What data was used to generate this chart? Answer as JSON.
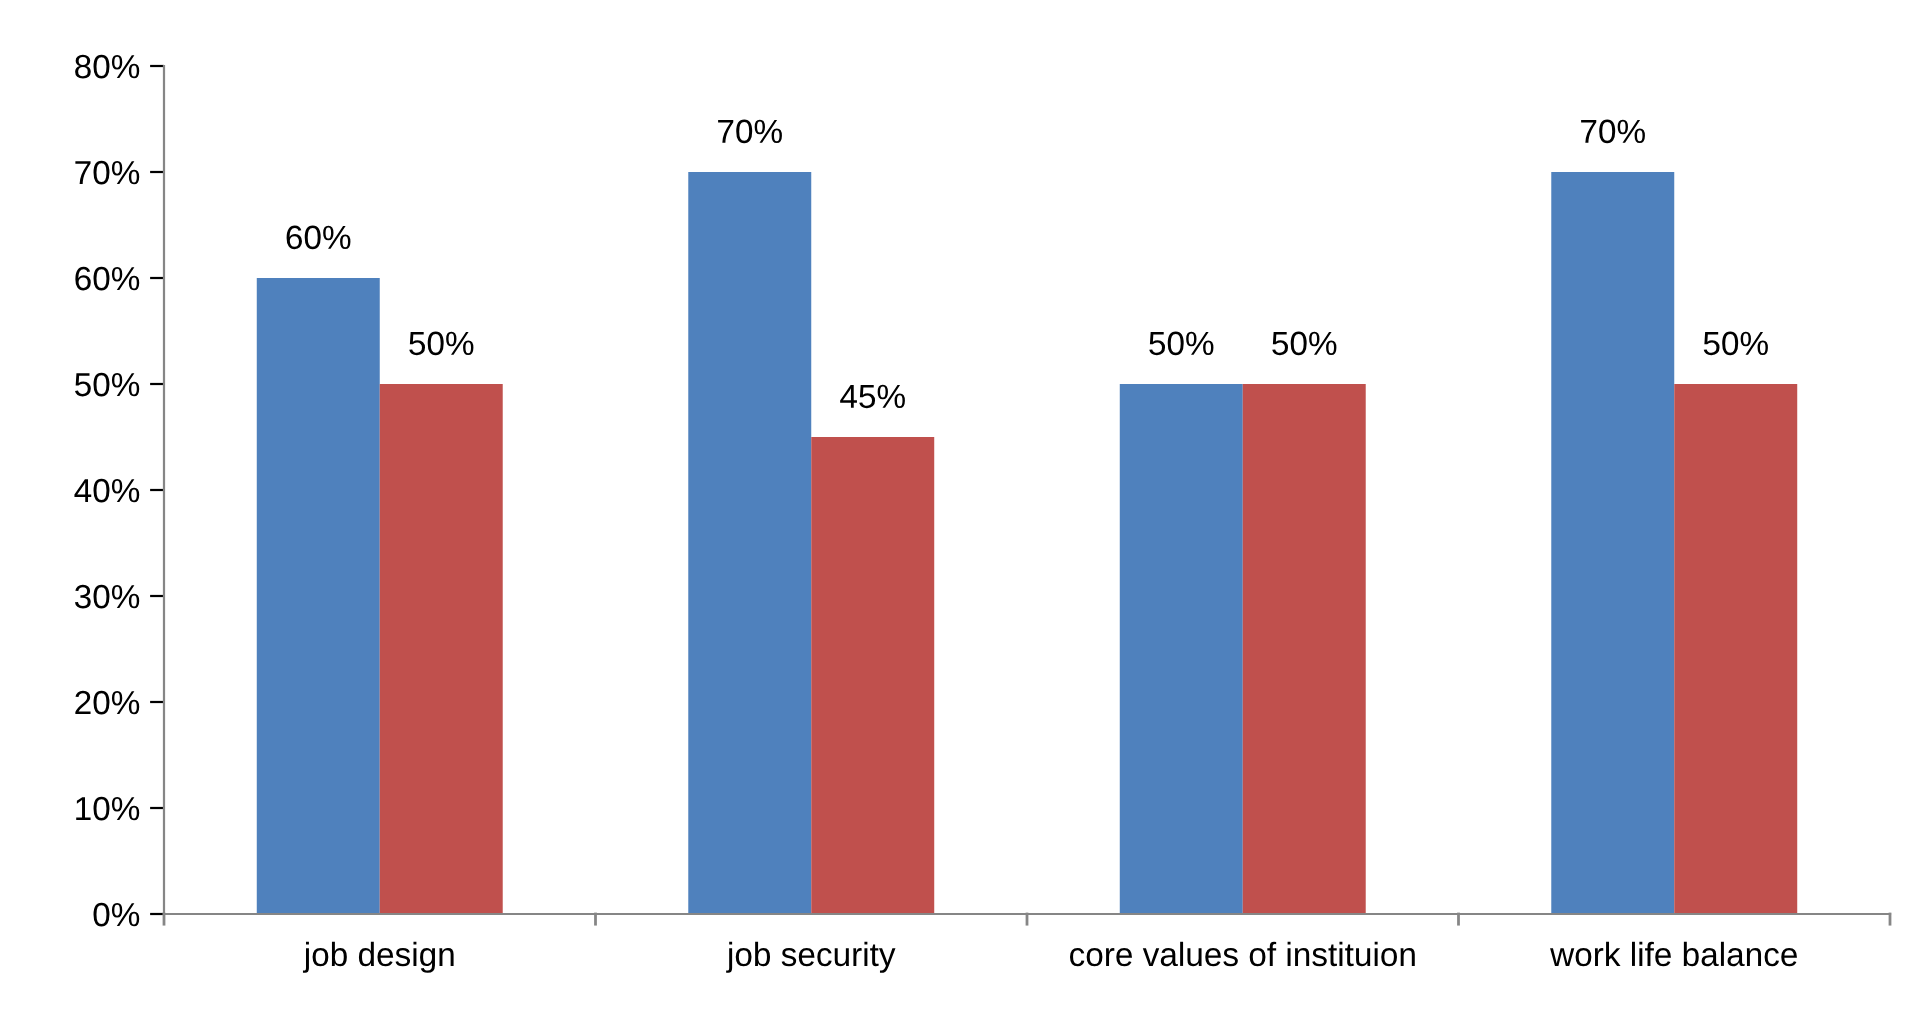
{
  "chart_data": {
    "type": "bar",
    "categories": [
      "job design",
      "job security",
      "core values of instituion",
      "work life balance"
    ],
    "series": [
      {
        "color": "#4f81bd",
        "values": [
          60,
          70,
          50,
          70
        ],
        "value_labels": [
          "60%",
          "70%",
          "50%",
          "70%"
        ]
      },
      {
        "color": "#c0504d",
        "values": [
          50,
          45,
          50,
          50
        ],
        "value_labels": [
          "50%",
          "45%",
          "50%",
          "50%"
        ]
      }
    ],
    "ylim": [
      0,
      80
    ],
    "yticks": [
      {
        "value": 0,
        "label": "0%"
      },
      {
        "value": 10,
        "label": "10%"
      },
      {
        "value": 20,
        "label": "20%"
      },
      {
        "value": 30,
        "label": "30%"
      },
      {
        "value": 40,
        "label": "40%"
      },
      {
        "value": 50,
        "label": "50%"
      },
      {
        "value": 60,
        "label": "60%"
      },
      {
        "value": 70,
        "label": "70%"
      },
      {
        "value": 80,
        "label": "80%"
      }
    ],
    "grid": false,
    "legend": false
  }
}
